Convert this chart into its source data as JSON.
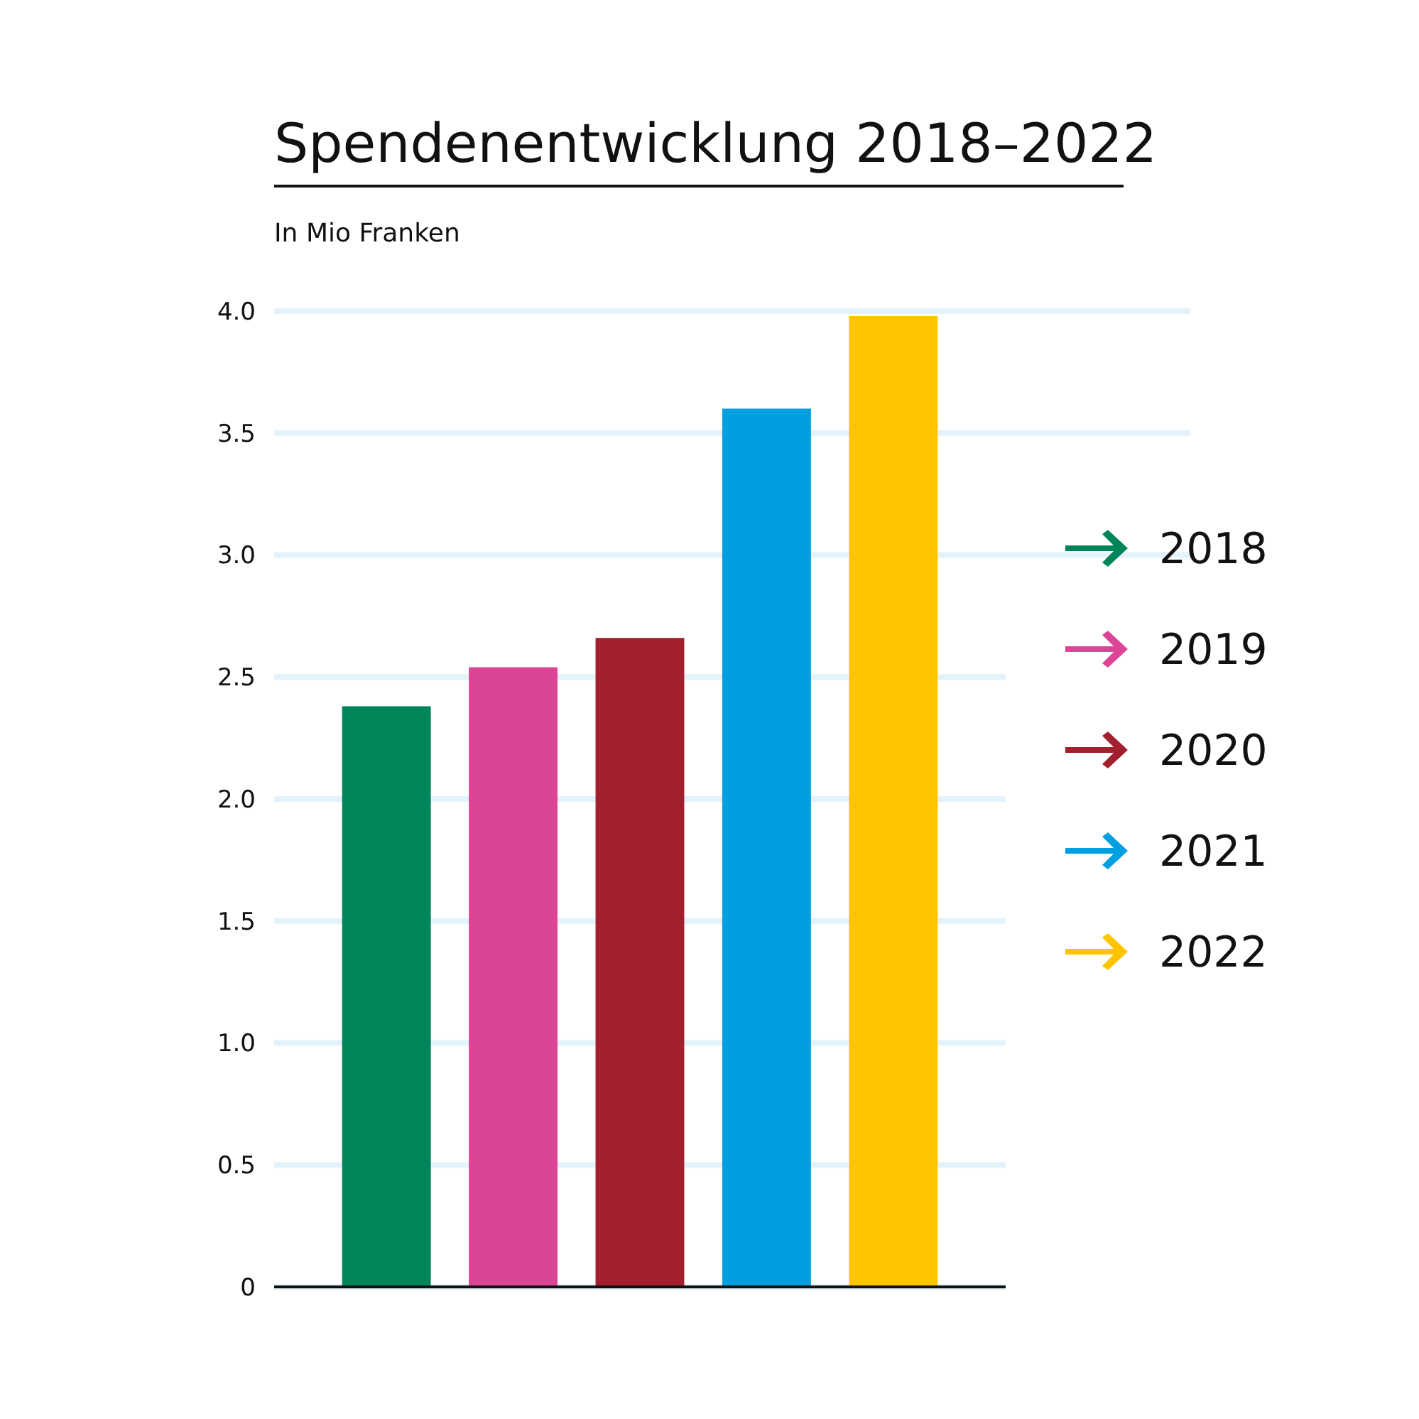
{
  "chart_data": {
    "type": "bar",
    "title": "Spendenentwicklung 2018–2022",
    "subtitle": "In Mio Franken",
    "categories": [
      null,
      null,
      null,
      null,
      null
    ],
    "series": [
      {
        "name": "2018",
        "color": "#00845a",
        "values": [
          2.38,
          null,
          null,
          null,
          null
        ]
      },
      {
        "name": "2019",
        "color": "#dc4496",
        "values": [
          null,
          2.54,
          null,
          null,
          null
        ]
      },
      {
        "name": "2020",
        "color": "#a21f2e",
        "values": [
          null,
          null,
          2.66,
          null,
          null
        ]
      },
      {
        "name": "2021",
        "color": "#009fe0",
        "values": [
          null,
          null,
          null,
          3.6,
          null
        ]
      },
      {
        "name": "2022",
        "color": "#ffc400",
        "values": [
          null,
          null,
          null,
          null,
          3.98
        ]
      }
    ],
    "ylim": [
      0,
      4
    ],
    "yticks": [
      {
        "value": 0,
        "label": "0"
      },
      {
        "value": 0.5,
        "label": "0.5"
      },
      {
        "value": 1,
        "label": "1.0"
      },
      {
        "value": 1.5,
        "label": "1.5"
      },
      {
        "value": 2,
        "label": "2.0"
      },
      {
        "value": 2.5,
        "label": "2.5"
      },
      {
        "value": 3,
        "label": "3.0"
      },
      {
        "value": 3.5,
        "label": "3.5"
      },
      {
        "value": 4,
        "label": "4.0"
      }
    ],
    "grid": "y",
    "legend": "right",
    "tick_labels": "y"
  }
}
